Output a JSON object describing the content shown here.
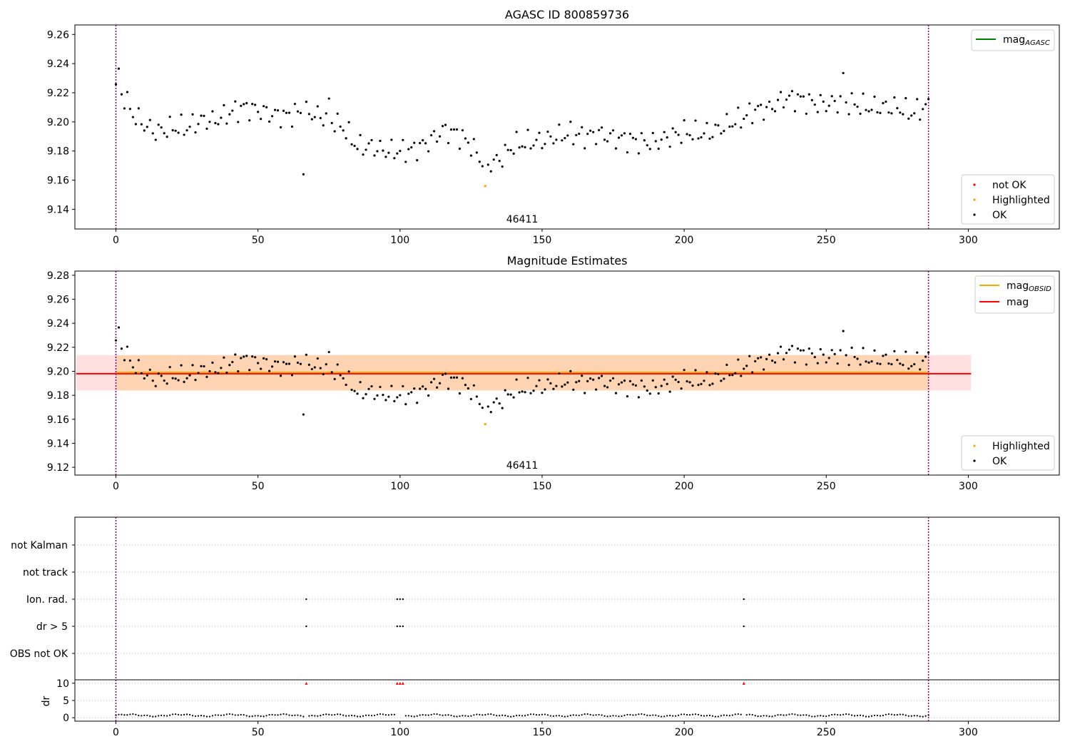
{
  "figure": {
    "title": "AGASC ID 800859736",
    "colors": {
      "ok": "#000000",
      "highlight": "#ffa500",
      "not_ok": "#ff0000",
      "agasc": "#008000",
      "obsid_line": "#ffa500",
      "mag_line": "#ff0000",
      "marker_line": "#800080",
      "band_orange": "#ffa500",
      "band_red": "#ff0000"
    }
  },
  "chart_data": [
    {
      "type": "scatter",
      "name": "agasc",
      "title": "AGASC ID 800859736",
      "xlim": [
        -14,
        332
      ],
      "ylim": [
        9.1265,
        9.2665
      ],
      "xticks": [
        0,
        50,
        100,
        150,
        200,
        250,
        300
      ],
      "yticks": [
        9.14,
        9.16,
        9.18,
        9.2,
        9.22,
        9.24,
        9.26
      ],
      "ytick_labels": [
        "9.14",
        "9.16",
        "9.18",
        "9.20",
        "9.22",
        "9.24",
        "9.26"
      ],
      "obsid_label": "46411",
      "vlines_x": [
        0,
        286
      ],
      "legend_top": [
        {
          "label": "mag",
          "sub": "AGASC",
          "kind": "line",
          "color": "#008000"
        }
      ],
      "legend_bottom": [
        {
          "label": "not OK",
          "kind": "point",
          "color": "#ff0000"
        },
        {
          "label": "Highlighted",
          "kind": "point",
          "color": "#ffa500"
        },
        {
          "label": "OK",
          "kind": "point",
          "color": "#000000"
        }
      ]
    },
    {
      "type": "scatter",
      "name": "estimates",
      "title": "Magnitude Estimates",
      "xlim": [
        -14,
        332
      ],
      "ylim": [
        9.1135,
        9.2835
      ],
      "xticks": [
        0,
        50,
        100,
        150,
        200,
        250,
        300
      ],
      "yticks": [
        9.12,
        9.14,
        9.16,
        9.18,
        9.2,
        9.22,
        9.24,
        9.26,
        9.28
      ],
      "ytick_labels": [
        "9.12",
        "9.14",
        "9.16",
        "9.18",
        "9.20",
        "9.22",
        "9.24",
        "9.26",
        "9.28"
      ],
      "obsid_label": "46411",
      "vlines_x": [
        0,
        286
      ],
      "mag_obsid": 9.199,
      "mag": 9.198,
      "band_obsid": {
        "x": [
          0,
          286
        ],
        "y": [
          9.184,
          9.2135
        ]
      },
      "band_mag": {
        "x": [
          -14,
          301
        ],
        "y": [
          9.184,
          9.2135
        ]
      },
      "legend_top": [
        {
          "label": "mag",
          "sub": "OBSID",
          "kind": "line",
          "color": "#ffa500"
        },
        {
          "label": "mag",
          "sub": "",
          "kind": "line",
          "color": "#ff0000"
        }
      ],
      "legend_bottom": [
        {
          "label": "Highlighted",
          "kind": "point",
          "color": "#ffa500"
        },
        {
          "label": "OK",
          "kind": "point",
          "color": "#000000"
        }
      ]
    },
    {
      "type": "scatter",
      "name": "flags",
      "xlim": [
        -14,
        332
      ],
      "categories": [
        "OBS not OK",
        "dr > 5",
        "Ion. rad.",
        "not track",
        "not Kalman"
      ],
      "flag_points": {
        "dr > 5": [
          67,
          99,
          100,
          101,
          221
        ],
        "Ion. rad.": [
          67,
          99,
          100,
          101,
          221
        ],
        "not track": [],
        "not Kalman": [],
        "OBS not OK": []
      },
      "vlines_x": [
        0,
        286
      ]
    },
    {
      "type": "scatter",
      "name": "dr",
      "ylabel": "dr",
      "xlim": [
        -14,
        332
      ],
      "ylim": [
        -1,
        11
      ],
      "yticks": [
        0,
        5,
        10
      ],
      "xticks": [
        0,
        50,
        100,
        150,
        200,
        250,
        300
      ],
      "clipped_x": [
        67,
        99,
        100,
        101,
        221
      ],
      "vlines_x": [
        0,
        286
      ]
    }
  ]
}
